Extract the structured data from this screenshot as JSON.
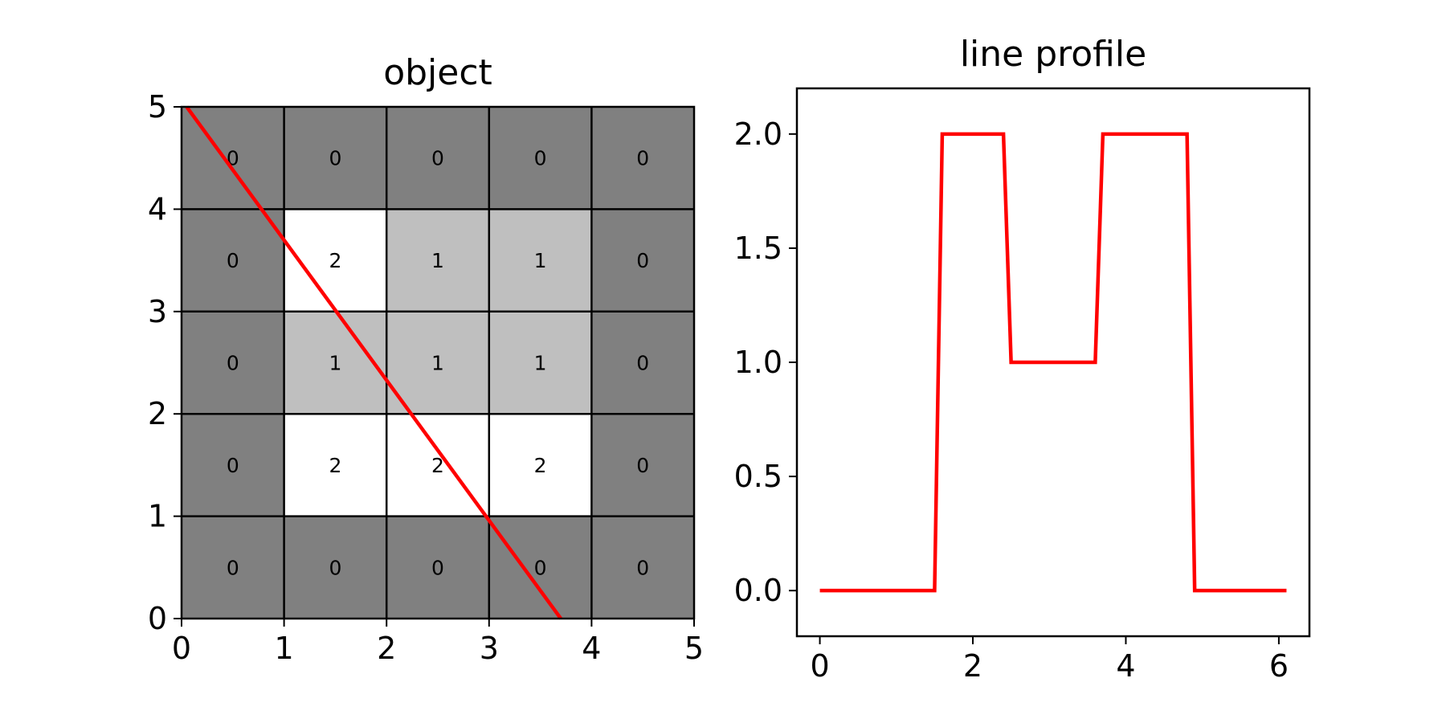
{
  "chart_data": [
    {
      "type": "heatmap",
      "title": "object",
      "xlim": [
        0,
        5
      ],
      "ylim": [
        0,
        5
      ],
      "x_ticks": [
        0,
        1,
        2,
        3,
        4,
        5
      ],
      "y_ticks": [
        0,
        1,
        2,
        3,
        4,
        5
      ],
      "grid": [
        [
          0,
          0,
          0,
          0,
          0
        ],
        [
          0,
          2,
          1,
          1,
          0
        ],
        [
          0,
          1,
          1,
          1,
          0
        ],
        [
          0,
          2,
          2,
          2,
          0
        ],
        [
          0,
          0,
          0,
          0,
          0
        ]
      ],
      "grid_row_order": "top-to-bottom",
      "cell_colors": {
        "0": "#808080",
        "1": "#bfbfbf",
        "2": "#ffffff"
      },
      "line": {
        "color": "#ff0000",
        "start": [
          0.05,
          5.0
        ],
        "end": [
          3.7,
          0.0
        ]
      }
    },
    {
      "type": "line",
      "title": "line profile",
      "xlim": [
        -0.3,
        6.4
      ],
      "ylim": [
        -0.2,
        2.2
      ],
      "x_ticks": [
        0,
        2,
        4,
        6
      ],
      "y_ticks": [
        "0.0",
        "0.5",
        "1.0",
        "1.5",
        "2.0"
      ],
      "series": [
        {
          "color": "#ff0000",
          "x": [
            0.0,
            1.5,
            1.6,
            2.4,
            2.5,
            3.6,
            3.7,
            4.8,
            4.9,
            6.1
          ],
          "y": [
            0,
            0,
            2,
            2,
            1,
            1,
            2,
            2,
            0,
            0
          ]
        }
      ]
    }
  ]
}
